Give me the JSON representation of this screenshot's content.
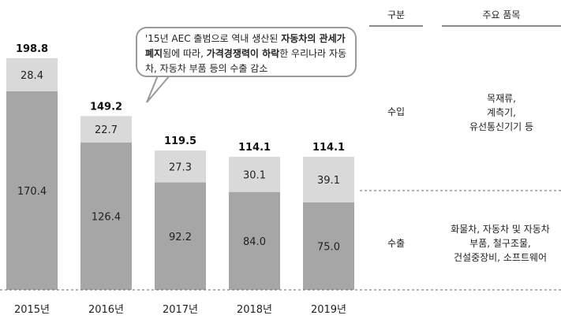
{
  "chart_data": {
    "type": "bar",
    "stacked": true,
    "categories": [
      "2015년",
      "2016년",
      "2017년",
      "2018년",
      "2019년"
    ],
    "series": [
      {
        "name": "수출",
        "values": [
          170.4,
          126.4,
          92.2,
          84.0,
          75.0
        ],
        "color": "#a6a6a6"
      },
      {
        "name": "수입",
        "values": [
          28.4,
          22.7,
          27.3,
          30.1,
          39.1
        ],
        "color": "#d9d9d9"
      }
    ],
    "totals": [
      198.8,
      149.2,
      119.5,
      114.1,
      114.1
    ],
    "title": "",
    "xlabel": "",
    "ylabel": "",
    "ylim": [
      0,
      220
    ],
    "grid": false,
    "legend": "none"
  },
  "callout": {
    "part1": "'15년 AEC 출범으로 역내 생산된 ",
    "bold1": "자동차의 관세가 폐지",
    "part2": "됨에 따라, ",
    "bold2": "가격경쟁력이 하락",
    "part3": "한 우리나라 자동차, 자동차 부품 등의 수출 감소"
  },
  "table": {
    "header_category": "구분",
    "header_items": "주요 품목",
    "rows": [
      {
        "category": "수입",
        "items": [
          "목재류,",
          "계측기,",
          "유선통신기기 등"
        ]
      },
      {
        "category": "수출",
        "items": [
          "화물차, 자동차 및 자동차",
          "부품, 철구조물,",
          "건설중장비, 소프트웨어"
        ]
      }
    ]
  }
}
